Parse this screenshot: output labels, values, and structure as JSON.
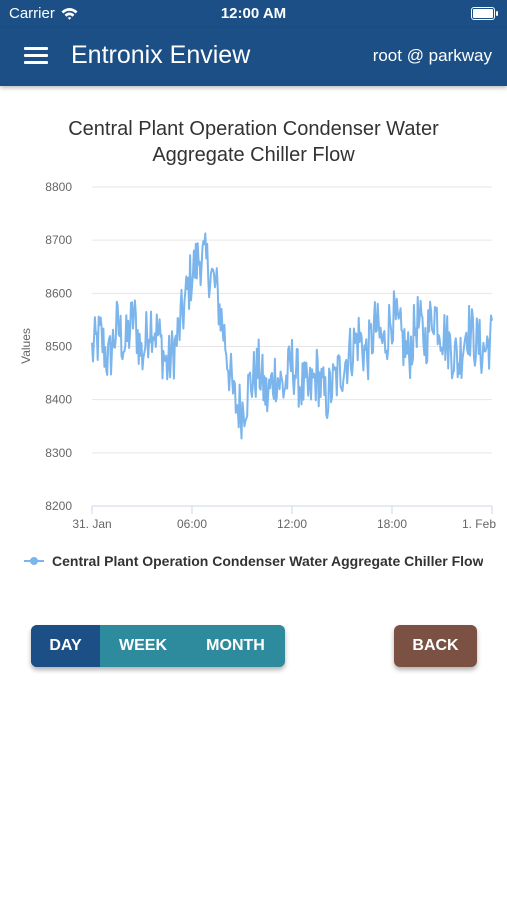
{
  "status_bar": {
    "carrier": "Carrier",
    "time": "12:00 AM"
  },
  "app_bar": {
    "title": "Entronix Enview",
    "user": "root @ parkway"
  },
  "chart_data": {
    "type": "line",
    "title": "Central Plant Operation Condenser Water Aggregate Chiller Flow",
    "ylabel": "Values",
    "ylim": [
      8200,
      8800
    ],
    "yticks": [
      8200,
      8300,
      8400,
      8500,
      8600,
      8700,
      8800
    ],
    "xlim": [
      "31 Jan 00:00",
      "1 Feb 00:00"
    ],
    "xticks": [
      "31. Jan",
      "06:00",
      "12:00",
      "18:00",
      "1. Feb"
    ],
    "grid": true,
    "legend": "bottom-left",
    "series": [
      {
        "name": "Central Plant Operation Condenser Water Aggregate Chiller Flow",
        "color": "#7cb5ec",
        "x_hours": [
          0,
          0.5,
          1,
          1.5,
          2,
          2.5,
          3,
          3.5,
          4,
          4.5,
          5,
          5.5,
          6,
          6.5,
          7,
          7.5,
          8,
          8.5,
          9,
          9.5,
          10,
          10.5,
          11,
          11.5,
          12,
          12.5,
          13,
          13.5,
          14,
          14.5,
          15,
          15.5,
          16,
          16.5,
          17,
          17.5,
          18,
          18.5,
          19,
          19.5,
          20,
          20.5,
          21,
          21.5,
          22,
          22.5,
          23,
          23.5,
          24
        ],
        "values": [
          8490,
          8520,
          8470,
          8540,
          8500,
          8560,
          8480,
          8550,
          8520,
          8460,
          8500,
          8570,
          8640,
          8670,
          8650,
          8600,
          8510,
          8400,
          8380,
          8430,
          8460,
          8400,
          8450,
          8420,
          8470,
          8430,
          8410,
          8450,
          8400,
          8430,
          8460,
          8490,
          8520,
          8480,
          8540,
          8500,
          8560,
          8520,
          8480,
          8550,
          8510,
          8570,
          8530,
          8500,
          8470,
          8540,
          8510,
          8490,
          8520
        ]
      }
    ]
  },
  "range_selector": {
    "day": "DAY",
    "week": "WEEK",
    "month": "MONTH",
    "selected": "DAY"
  },
  "back_button": {
    "label": "BACK"
  }
}
